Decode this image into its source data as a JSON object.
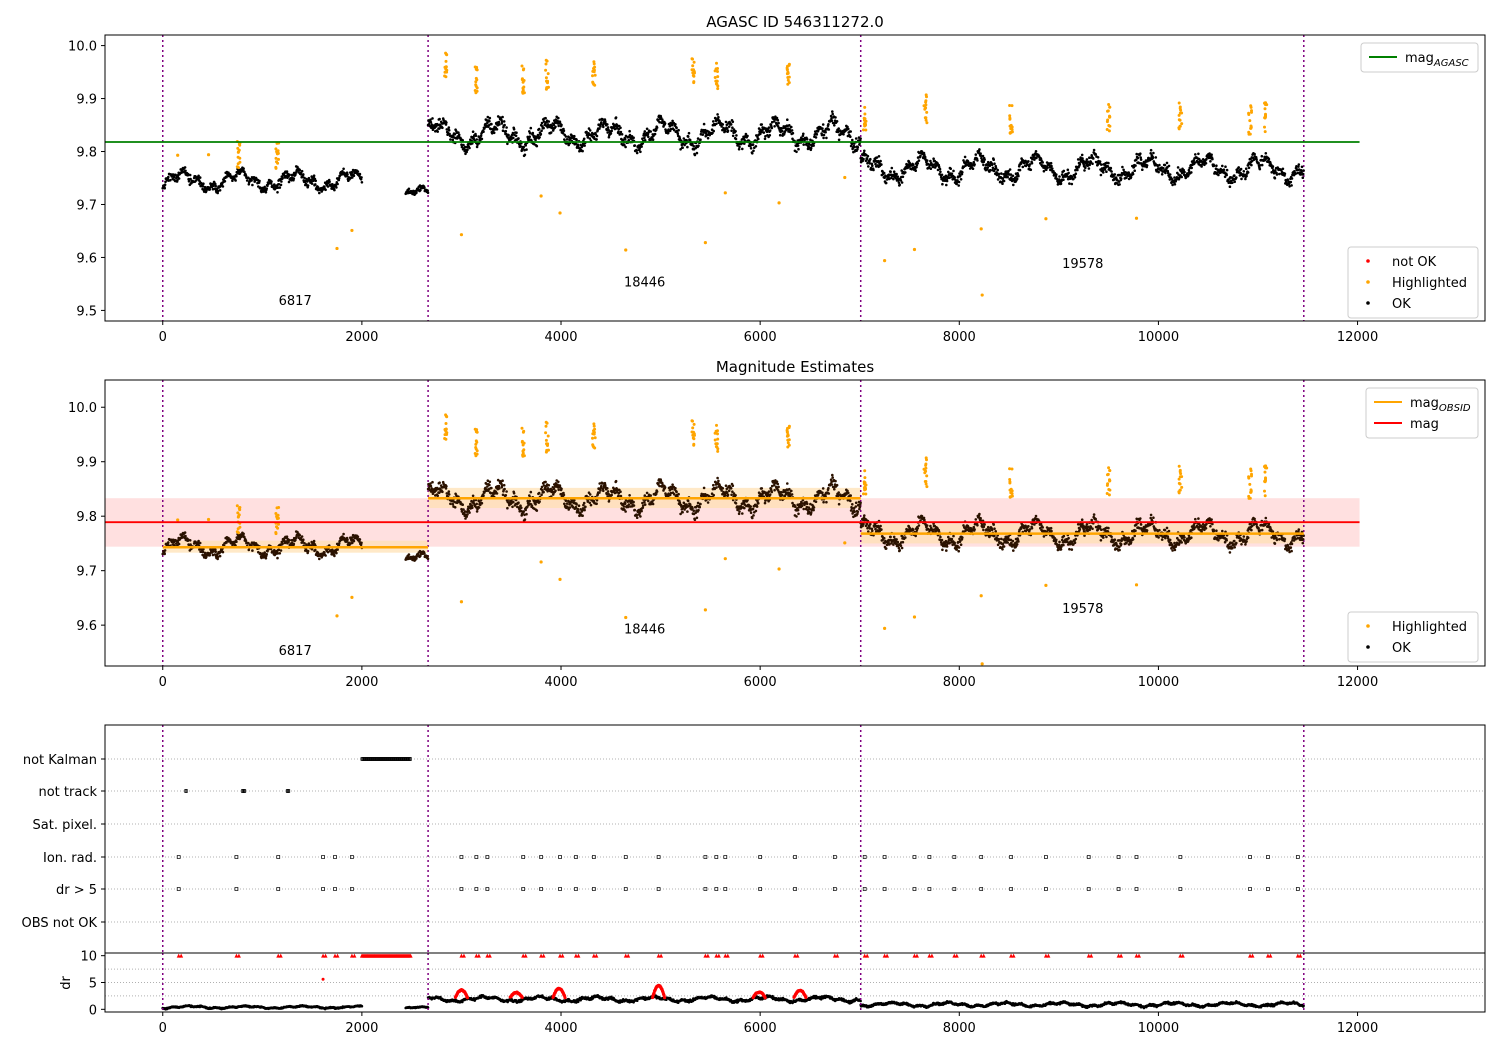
{
  "colors": {
    "ok": "#000000",
    "highlighted": "#ffa500",
    "not_ok": "#ff0000",
    "mag_agasc": "#008000",
    "mag_obsid": "#ffa500",
    "mag": "#ff0000",
    "obs_boundary": "#800080",
    "band_fill": "#ffcccc"
  },
  "chart_data": [
    {
      "type": "scatter",
      "title": "AGASC ID 546311272.0",
      "xlim": [
        -580,
        13280
      ],
      "ylim": [
        9.48,
        10.02
      ],
      "xticks": [
        0,
        2000,
        4000,
        6000,
        8000,
        10000,
        12000
      ],
      "yticks": [
        9.5,
        9.6,
        9.7,
        9.8,
        9.9,
        10.0
      ],
      "obs_boundaries": [
        0,
        2665,
        7010,
        11460
      ],
      "obsids": [
        {
          "label": "6817",
          "x": 1330,
          "y": 9.51
        },
        {
          "label": "18446",
          "x": 4840,
          "y": 9.545
        },
        {
          "label": "19578",
          "x": 9240,
          "y": 9.58
        }
      ],
      "segments": [
        {
          "x": [
            0,
            2000
          ],
          "base": 9.745,
          "amp": 0.022
        },
        {
          "x": [
            2440,
            2665
          ],
          "base": 9.722,
          "amp": 0.012
        },
        {
          "x": [
            2665,
            7010
          ],
          "base": 9.833,
          "amp": 0.032
        },
        {
          "x": [
            7010,
            11460
          ],
          "base": 9.768,
          "amp": 0.03
        }
      ],
      "lines": [
        {
          "name": "mag_AGASC",
          "x": [
            -580,
            12020
          ],
          "y": 9.818
        }
      ],
      "highlighted_points": [
        {
          "x": 1750,
          "y": 9.617
        },
        {
          "x": 1900,
          "y": 9.651
        },
        {
          "x": 3000,
          "y": 9.643
        },
        {
          "x": 3800,
          "y": 9.716
        },
        {
          "x": 3990,
          "y": 9.684
        },
        {
          "x": 4650,
          "y": 9.614
        },
        {
          "x": 5450,
          "y": 9.628
        },
        {
          "x": 5650,
          "y": 9.722
        },
        {
          "x": 6190,
          "y": 9.703
        },
        {
          "x": 7250,
          "y": 9.594
        },
        {
          "x": 7550,
          "y": 9.615
        },
        {
          "x": 8220,
          "y": 9.654
        },
        {
          "x": 8230,
          "y": 9.529
        },
        {
          "x": 8870,
          "y": 9.673
        },
        {
          "x": 9780,
          "y": 9.674
        },
        {
          "x": 6850,
          "y": 9.751
        },
        {
          "x": 150,
          "y": 9.793
        },
        {
          "x": 460,
          "y": 9.794
        }
      ],
      "highlighted_clusters": [
        {
          "x": 2840,
          "y": 9.96
        },
        {
          "x": 3150,
          "y": 9.935
        },
        {
          "x": 3620,
          "y": 9.935
        },
        {
          "x": 3860,
          "y": 9.945
        },
        {
          "x": 4330,
          "y": 9.945
        },
        {
          "x": 5330,
          "y": 9.955
        },
        {
          "x": 5560,
          "y": 9.945
        },
        {
          "x": 6280,
          "y": 9.94
        },
        {
          "x": 7050,
          "y": 9.86
        },
        {
          "x": 7660,
          "y": 9.88
        },
        {
          "x": 8520,
          "y": 9.86
        },
        {
          "x": 9500,
          "y": 9.865
        },
        {
          "x": 10220,
          "y": 9.87
        },
        {
          "x": 10920,
          "y": 9.86
        },
        {
          "x": 11080,
          "y": 9.865
        },
        {
          "x": 760,
          "y": 9.795
        },
        {
          "x": 1150,
          "y": 9.792
        }
      ],
      "legends": [
        {
          "entries": [
            {
              "label": "mag",
              "sub": "AGASC",
              "kind": "line",
              "color": "#008000"
            }
          ]
        },
        {
          "entries": [
            {
              "label": "not OK",
              "kind": "dot",
              "color": "#ff0000"
            },
            {
              "label": "Highlighted",
              "kind": "dot",
              "color": "#ffa500"
            },
            {
              "label": "OK",
              "kind": "dot",
              "color": "#000000"
            }
          ]
        }
      ]
    },
    {
      "type": "scatter",
      "title": "Magnitude Estimates",
      "xlim": [
        -580,
        13280
      ],
      "ylim": [
        9.525,
        10.05
      ],
      "xticks": [
        0,
        2000,
        4000,
        6000,
        8000,
        10000,
        12000
      ],
      "yticks": [
        9.6,
        9.7,
        9.8,
        9.9,
        10.0
      ],
      "obs_boundaries": [
        0,
        2665,
        7010,
        11460
      ],
      "obsids": [
        {
          "label": "6817",
          "x": 1330,
          "y": 9.545
        },
        {
          "label": "18446",
          "x": 4840,
          "y": 9.585
        },
        {
          "label": "19578",
          "x": 9240,
          "y": 9.622
        }
      ],
      "mag_obsid": [
        {
          "x": [
            0,
            2665
          ],
          "y": 9.743,
          "band": [
            9.733,
            9.755
          ]
        },
        {
          "x": [
            2665,
            7010
          ],
          "y": 9.833,
          "band": [
            9.815,
            9.852
          ]
        },
        {
          "x": [
            7010,
            11460
          ],
          "y": 9.768,
          "band": [
            9.75,
            9.786
          ]
        }
      ],
      "mag": {
        "x": [
          -580,
          12020
        ],
        "y": 9.789,
        "band": [
          9.744,
          9.833
        ]
      },
      "legends": [
        {
          "entries": [
            {
              "label": "mag",
              "sub": "OBSID",
              "kind": "line",
              "color": "#ffa500"
            },
            {
              "label": "mag",
              "kind": "line",
              "color": "#ff0000"
            }
          ]
        },
        {
          "entries": [
            {
              "label": "Highlighted",
              "kind": "dot",
              "color": "#ffa500"
            },
            {
              "label": "OK",
              "kind": "dot",
              "color": "#000000"
            }
          ]
        }
      ]
    },
    {
      "type": "scatter",
      "title": "",
      "xlim": [
        -580,
        13280
      ],
      "categories": [
        "not Kalman",
        "not track",
        "Sat. pixel.",
        "Ion. rad.",
        "dr > 5",
        "OBS not OK"
      ],
      "flags": {
        "not Kalman": [
          [
            2000,
            2490
          ]
        ],
        "not track": [
          [
            230,
            240
          ],
          [
            800,
            830
          ],
          [
            1250,
            1270
          ]
        ],
        "Sat. pixel.": [],
        "Ion. rad.": [
          160,
          740,
          1160,
          1610,
          1730,
          1900,
          3000,
          3150,
          3260,
          3620,
          3800,
          3990,
          4150,
          4330,
          4650,
          4980,
          5450,
          5560,
          5650,
          6000,
          6350,
          6750,
          7050,
          7250,
          7550,
          7700,
          7950,
          8220,
          8520,
          8870,
          9300,
          9600,
          9780,
          10220,
          10920,
          11100,
          11400
        ],
        "dr > 5": [
          160,
          740,
          1160,
          1610,
          1730,
          1900,
          3000,
          3150,
          3260,
          3620,
          3800,
          3990,
          4150,
          4330,
          4650,
          4980,
          5450,
          5560,
          5650,
          6000,
          6350,
          6750,
          7050,
          7250,
          7550,
          7700,
          7950,
          8220,
          8520,
          8870,
          9300,
          9600,
          9780,
          10220,
          10920,
          11100,
          11400
        ],
        "OBS not OK": []
      }
    },
    {
      "type": "scatter",
      "title": "",
      "ylabel": "dr",
      "xlim": [
        -580,
        13280
      ],
      "ylim": [
        -0.5,
        10.5
      ],
      "xticks": [
        0,
        2000,
        4000,
        6000,
        8000,
        10000,
        12000
      ],
      "yticks": [
        0,
        5,
        10
      ],
      "clip_value": 10,
      "segments": [
        {
          "x": [
            0,
            2000
          ],
          "base": 0.4,
          "amp": 0.3
        },
        {
          "x": [
            2440,
            2665
          ],
          "base": 0.3,
          "amp": 0.2
        },
        {
          "x": [
            2665,
            7010
          ],
          "base": 1.9,
          "amp": 0.6
        },
        {
          "x": [
            7010,
            11460
          ],
          "base": 0.9,
          "amp": 0.5
        }
      ],
      "bumps": [
        {
          "x": 3000,
          "y": 3.6
        },
        {
          "x": 3550,
          "y": 3.1
        },
        {
          "x": 3980,
          "y": 3.9
        },
        {
          "x": 4980,
          "y": 4.4
        },
        {
          "x": 5990,
          "y": 3.2
        },
        {
          "x": 6400,
          "y": 3.5
        }
      ],
      "outliers": [
        {
          "x": 1610,
          "y": 5.6
        }
      ],
      "clipped_ranges": [
        [
          2000,
          2490
        ]
      ]
    }
  ]
}
